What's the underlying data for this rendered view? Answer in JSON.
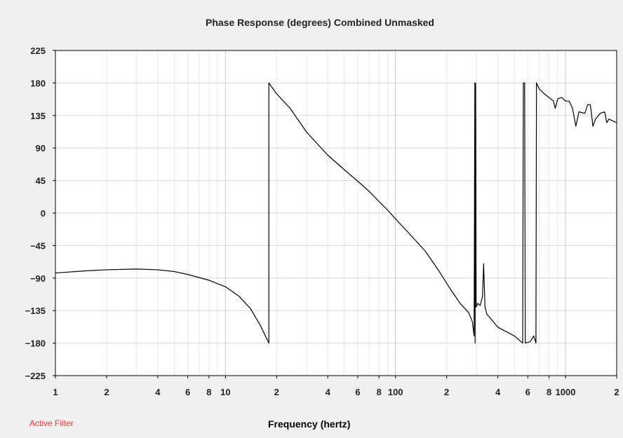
{
  "chart_data": {
    "type": "line",
    "title": "Phase Response (degrees)   Combined   Unmasked",
    "xlabel": "Frequency (hertz)",
    "ylabel": "",
    "x_scale": "log",
    "xlim": [
      1,
      2000
    ],
    "ylim": [
      -225,
      225
    ],
    "y_ticks": [
      225,
      180,
      135,
      90,
      45,
      0,
      -45,
      -90,
      -135,
      -180,
      -225
    ],
    "y_tick_labels": [
      "225",
      "180",
      "135",
      "90",
      "45",
      "0",
      "−45",
      "−90",
      "−135",
      "−180",
      "−225"
    ],
    "x_ticks": [
      1,
      2,
      4,
      6,
      8,
      10,
      20,
      40,
      60,
      80,
      100,
      200,
      400,
      600,
      800,
      1000,
      2000
    ],
    "x_tick_labels": [
      "1",
      "2",
      "4",
      "6",
      "8",
      "10",
      "2",
      "4",
      "6",
      "8",
      "100",
      "2",
      "4",
      "6",
      "8",
      "1000",
      "2"
    ],
    "grid": true,
    "line_color": "#000000",
    "series": [
      {
        "name": "",
        "points": [
          [
            1.0,
            -83
          ],
          [
            1.5,
            -80
          ],
          [
            2.0,
            -78.5
          ],
          [
            3.0,
            -77.5
          ],
          [
            4.0,
            -78.5
          ],
          [
            5.0,
            -81
          ],
          [
            6.0,
            -85
          ],
          [
            8.0,
            -93
          ],
          [
            10.0,
            -102
          ],
          [
            12.0,
            -115
          ],
          [
            14.0,
            -132
          ],
          [
            16.0,
            -155
          ],
          [
            18.0,
            -180
          ],
          [
            18.0,
            180
          ],
          [
            20.0,
            165
          ],
          [
            24.0,
            145
          ],
          [
            30.0,
            112
          ],
          [
            40.0,
            80
          ],
          [
            50.0,
            60
          ],
          [
            60.0,
            44
          ],
          [
            70.0,
            30
          ],
          [
            80.0,
            16
          ],
          [
            90.0,
            4
          ],
          [
            100.0,
            -8
          ],
          [
            120.0,
            -28
          ],
          [
            150.0,
            -53
          ],
          [
            180.0,
            -80
          ],
          [
            210.0,
            -105
          ],
          [
            240.0,
            -125
          ],
          [
            270.0,
            -138
          ],
          [
            283.0,
            -150
          ],
          [
            290.0,
            -170
          ],
          [
            293.0,
            180
          ],
          [
            294.0,
            -180
          ],
          [
            296.0,
            180
          ],
          [
            298.0,
            -130
          ],
          [
            305.0,
            -125
          ],
          [
            315.0,
            -128
          ],
          [
            325.0,
            -115
          ],
          [
            330.0,
            -70
          ],
          [
            336.0,
            -130
          ],
          [
            345.0,
            -140
          ],
          [
            400.0,
            -158
          ],
          [
            500.0,
            -170
          ],
          [
            560.0,
            -180
          ],
          [
            565.0,
            180
          ],
          [
            575.0,
            180
          ],
          [
            580.0,
            -180
          ],
          [
            620.0,
            -178
          ],
          [
            650.0,
            -170
          ],
          [
            670.0,
            -180
          ],
          [
            675.0,
            180
          ],
          [
            700.0,
            172
          ],
          [
            750.0,
            165
          ],
          [
            850.0,
            155
          ],
          [
            870.0,
            145
          ],
          [
            900.0,
            158
          ],
          [
            950.0,
            160
          ],
          [
            1000.0,
            155
          ],
          [
            1050.0,
            155
          ],
          [
            1100.0,
            145
          ],
          [
            1150.0,
            120
          ],
          [
            1200.0,
            140
          ],
          [
            1300.0,
            138
          ],
          [
            1350.0,
            150
          ],
          [
            1400.0,
            150
          ],
          [
            1450.0,
            120
          ],
          [
            1500.0,
            130
          ],
          [
            1600.0,
            138
          ],
          [
            1700.0,
            140
          ],
          [
            1750.0,
            125
          ],
          [
            1800.0,
            130
          ],
          [
            2000.0,
            125
          ]
        ]
      }
    ]
  },
  "footer": {
    "status": "Active Filter"
  }
}
